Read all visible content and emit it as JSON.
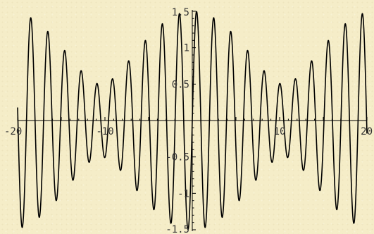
{
  "chart_data": {
    "type": "line",
    "title": "",
    "xlabel": "",
    "ylabel": "",
    "xlim": [
      -20,
      20
    ],
    "ylim": [
      -1.5,
      1.5
    ],
    "grid": false,
    "legend": "none",
    "function": "0.5*sin(3x) + sin(3.3x)",
    "components": [
      {
        "amplitude": 0.5,
        "frequency": 3.0
      },
      {
        "amplitude": 1.0,
        "frequency": 3.3
      }
    ],
    "x_tick_labels": [
      "-20",
      "-10",
      "10",
      "20"
    ],
    "x_tick_values": [
      -20,
      -10,
      10,
      20
    ],
    "y_tick_labels": [
      "1.5",
      "1",
      "0.5",
      "-0.5",
      "-1",
      "-1.5"
    ],
    "y_tick_values": [
      1.5,
      1,
      0.5,
      -0.5,
      -1,
      -1.5
    ],
    "colors": {
      "line": "#000000",
      "background": "#f5edc8"
    }
  }
}
